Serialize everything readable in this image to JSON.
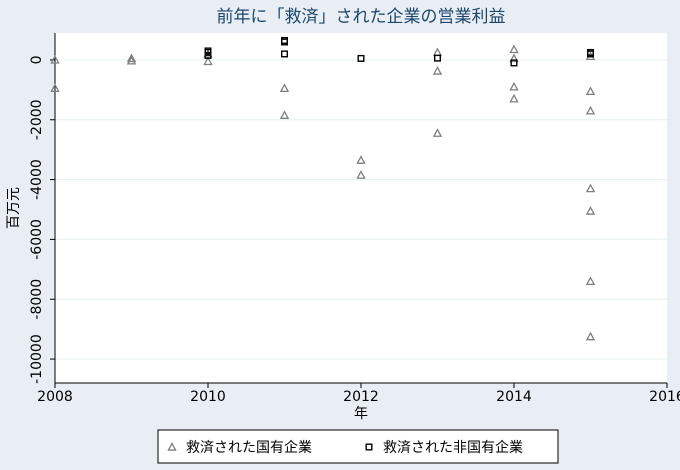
{
  "chart_data": {
    "type": "scatter",
    "title": "前年に「救済」された企業の営業利益",
    "xlabel": "年",
    "ylabel": "百万元",
    "xlim": [
      2008,
      2016
    ],
    "ylim": [
      -10800,
      900
    ],
    "xticks": [
      2008,
      2010,
      2012,
      2014,
      2016
    ],
    "yticks": [
      0,
      -2000,
      -4000,
      -6000,
      -8000,
      -10000
    ],
    "grid": true,
    "legend_position": "bottom",
    "series": [
      {
        "name": "救済された国有企業",
        "marker": "triangle",
        "color": "#7f7f7f",
        "points": [
          [
            2008,
            0
          ],
          [
            2008,
            -950
          ],
          [
            2009,
            50
          ],
          [
            2009,
            -30
          ],
          [
            2010,
            -50
          ],
          [
            2010,
            200
          ],
          [
            2011,
            -950
          ],
          [
            2011,
            -1850
          ],
          [
            2012,
            -3350
          ],
          [
            2012,
            -3850
          ],
          [
            2013,
            250
          ],
          [
            2013,
            -370
          ],
          [
            2013,
            -2450
          ],
          [
            2014,
            350
          ],
          [
            2014,
            50
          ],
          [
            2014,
            -900
          ],
          [
            2014,
            -1300
          ],
          [
            2015,
            120
          ],
          [
            2015,
            -1050
          ],
          [
            2015,
            -1700
          ],
          [
            2015,
            -4300
          ],
          [
            2015,
            -5050
          ],
          [
            2015,
            -7400
          ],
          [
            2015,
            -9250
          ]
        ]
      },
      {
        "name": "救済された非国有企業",
        "marker": "square",
        "color": "#000000",
        "points": [
          [
            2010,
            300
          ],
          [
            2010,
            250
          ],
          [
            2010,
            150
          ],
          [
            2011,
            650
          ],
          [
            2011,
            600
          ],
          [
            2011,
            200
          ],
          [
            2012,
            50
          ],
          [
            2013,
            60
          ],
          [
            2014,
            -100
          ],
          [
            2015,
            250
          ],
          [
            2015,
            200
          ]
        ]
      }
    ]
  }
}
